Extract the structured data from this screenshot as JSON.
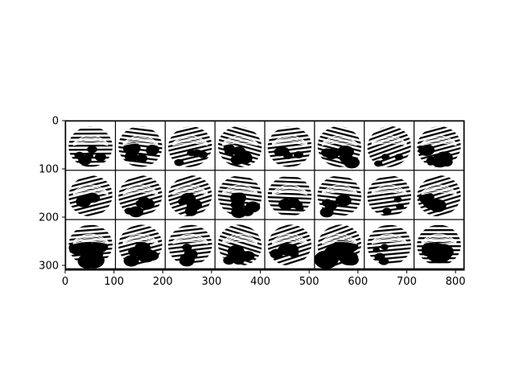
{
  "chart_data": {
    "type": "image",
    "title": "",
    "xlabel": "",
    "ylabel": "",
    "grid": false,
    "xlim": [
      0,
      818
    ],
    "ylim": [
      310,
      0
    ],
    "x_ticks": [
      0,
      100,
      200,
      300,
      400,
      500,
      600,
      700,
      800
    ],
    "y_ticks": [
      0,
      100,
      200,
      300
    ],
    "x_tick_labels": [
      "0",
      "100",
      "200",
      "300",
      "400",
      "500",
      "600",
      "700",
      "800"
    ],
    "y_tick_labels": [
      "0",
      "100",
      "200",
      "300"
    ],
    "image_grid": {
      "rows": 3,
      "cols": 8,
      "content": "fingerprint samples",
      "tile_fill": [
        [
          0.45,
          0.55,
          0.4,
          0.45,
          0.3,
          0.5,
          0.2,
          0.6
        ],
        [
          0.5,
          0.5,
          0.45,
          0.45,
          0.4,
          0.55,
          0.2,
          0.55
        ],
        [
          0.75,
          0.6,
          0.5,
          0.5,
          0.55,
          0.9,
          0.25,
          0.85
        ]
      ]
    },
    "colors": {
      "ink": "#000000",
      "paper": "#ffffff"
    }
  }
}
